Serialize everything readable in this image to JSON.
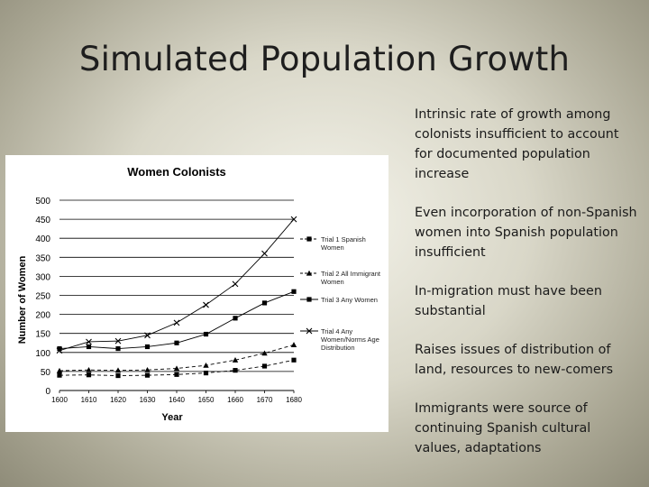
{
  "slide": {
    "title": "Simulated Population Growth",
    "bullets": [
      "Intrinsic rate of growth among colonists insufficient to account for documented population increase",
      "Even incorporation of non-Spanish women into Spanish population insufficient",
      "In-migration must have been substantial",
      "Raises issues of distribution of land, resources to new-comers",
      "Immigrants were source of continuing Spanish cultural values, adaptations"
    ]
  },
  "chart_data": {
    "type": "line",
    "title": "Women Colonists",
    "xlabel": "Year",
    "ylabel": "Number of Women",
    "x": [
      1600,
      1610,
      1620,
      1630,
      1640,
      1650,
      1660,
      1670,
      1680
    ],
    "xticks": [
      "1600",
      "1610",
      "1620",
      "1630",
      "1640",
      "1650",
      "1660",
      "1670",
      "1680"
    ],
    "ylim": [
      0,
      500
    ],
    "yticks": [
      0,
      50,
      100,
      150,
      200,
      250,
      300,
      350,
      400,
      450,
      500
    ],
    "grid": "horizontal",
    "legend_position": "right",
    "series": [
      {
        "name": "Trial 1 Spanish Women",
        "marker": "square",
        "dash": "4,3",
        "color": "#000000",
        "values": [
          40,
          41,
          39,
          40,
          42,
          46,
          53,
          64,
          80
        ]
      },
      {
        "name": "Trial 2 All Immigrant Women",
        "marker": "triangle",
        "dash": "4,3",
        "color": "#000000",
        "values": [
          52,
          54,
          53,
          54,
          58,
          66,
          80,
          98,
          120
        ]
      },
      {
        "name": "Trial 3 Any Women",
        "marker": "square",
        "dash": "",
        "color": "#000000",
        "values": [
          110,
          115,
          110,
          115,
          125,
          148,
          190,
          230,
          260
        ]
      },
      {
        "name": "Trial 4 Any Women Norms Age Distribution",
        "marker": "x",
        "dash": "",
        "color": "#000000",
        "values": [
          105,
          128,
          130,
          145,
          178,
          225,
          280,
          360,
          450
        ]
      }
    ],
    "legend_labels": [
      [
        "Trial 1 Spanish",
        "Women"
      ],
      [
        "Trial 2 All Immigrant",
        "Women"
      ],
      [
        "Trial 3 Any Women"
      ],
      [
        "Trial 4 Any",
        "Women/Norms Age",
        "Distribution"
      ]
    ]
  }
}
